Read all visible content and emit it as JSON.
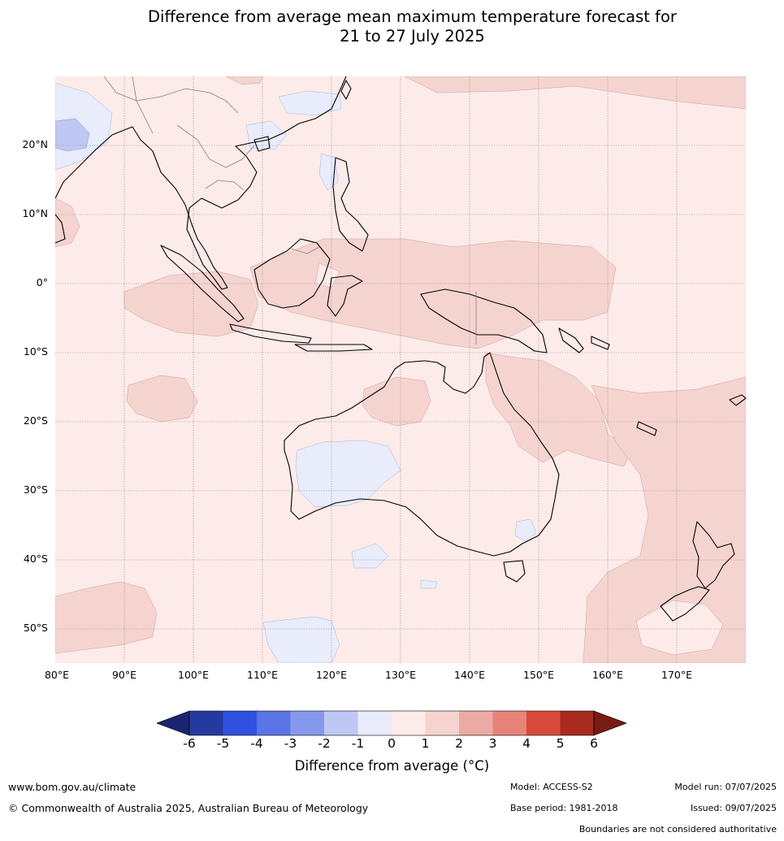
{
  "title_line1": "Difference from average mean maximum temperature forecast for",
  "title_line2": "21 to 27 July 2025",
  "lat_labels": [
    "20°N",
    "10°N",
    "0°",
    "10°S",
    "20°S",
    "30°S",
    "40°S",
    "50°S"
  ],
  "lon_labels": [
    "80°E",
    "90°E",
    "100°E",
    "110°E",
    "120°E",
    "130°E",
    "140°E",
    "150°E",
    "160°E",
    "170°E"
  ],
  "colorbar": {
    "ticks": [
      "-6",
      "-5",
      "-4",
      "-3",
      "-2",
      "-1",
      "0",
      "1",
      "2",
      "3",
      "4",
      "5",
      "6"
    ],
    "colors": [
      "#26399f",
      "#3050e0",
      "#5c75e6",
      "#8799ec",
      "#bfc8f4",
      "#e8ecfb",
      "#fcebe8",
      "#f5d4d0",
      "#ecaaa4",
      "#e8837a",
      "#d94a3c",
      "#a92a1f"
    ],
    "under_color": "#1a2470",
    "over_color": "#7a1a15",
    "label": "Difference from average (°C)"
  },
  "footer": {
    "website": "www.bom.gov.au/climate",
    "copyright": "© Commonwealth of Australia 2025, Australian Bureau of Meteorology",
    "model": "Model: ACCESS-S2",
    "base_period": "Base period: 1981-2018",
    "model_run": "Model run: 07/07/2025",
    "issued": "Issued: 09/07/2025",
    "disclaimer": "Boundaries are not considered authoritative"
  }
}
